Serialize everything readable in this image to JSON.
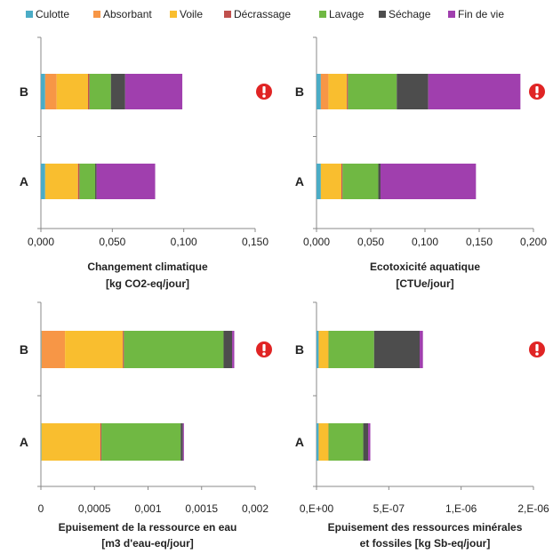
{
  "legend": [
    {
      "name": "Culotte",
      "color": "#4BACC6"
    },
    {
      "name": "Absorbant",
      "color": "#F79646"
    },
    {
      "name": "Voile",
      "color": "#F9BE2F"
    },
    {
      "name": "Décrassage",
      "color": "#C0504D"
    },
    {
      "name": "Lavage",
      "color": "#70B843"
    },
    {
      "name": "Séchage",
      "color": "#4D4D4D"
    },
    {
      "name": "Fin de vie",
      "color": "#A03FAE"
    }
  ],
  "alert_icon": "exclamation-circle-icon",
  "alert_color": "#E02424",
  "chart_data": [
    {
      "type": "bar",
      "orientation": "horizontal",
      "stacked": true,
      "categories": [
        "B",
        "A"
      ],
      "xlabel": "Changement climatique",
      "xunit": "[kg CO2-eq/jour]",
      "xlim": [
        0,
        0.15
      ],
      "xticks": [
        "0,000",
        "0,050",
        "0,100",
        "0,150"
      ],
      "alert_on": [
        "B"
      ],
      "series": [
        {
          "name": "Culotte",
          "values": [
            0.003,
            0.003
          ]
        },
        {
          "name": "Absorbant",
          "values": [
            0.008,
            0
          ]
        },
        {
          "name": "Voile",
          "values": [
            0.022,
            0.023
          ]
        },
        {
          "name": "Décrassage",
          "values": [
            0.001,
            0.001
          ]
        },
        {
          "name": "Lavage",
          "values": [
            0.015,
            0.011
          ]
        },
        {
          "name": "Séchage",
          "values": [
            0.01,
            0.001
          ]
        },
        {
          "name": "Fin de vie",
          "values": [
            0.04,
            0.041
          ]
        }
      ]
    },
    {
      "type": "bar",
      "orientation": "horizontal",
      "stacked": true,
      "categories": [
        "B",
        "A"
      ],
      "xlabel": "Ecotoxicité aquatique",
      "xunit": "[CTUe/jour]",
      "xlim": [
        0,
        0.2
      ],
      "xticks": [
        "0,000",
        "0,050",
        "0,100",
        "0,150",
        "0,200"
      ],
      "alert_on": [
        "B"
      ],
      "series": [
        {
          "name": "Culotte",
          "values": [
            0.004,
            0.004
          ]
        },
        {
          "name": "Absorbant",
          "values": [
            0.007,
            0
          ]
        },
        {
          "name": "Voile",
          "values": [
            0.017,
            0.019
          ]
        },
        {
          "name": "Décrassage",
          "values": [
            0.001,
            0.001
          ]
        },
        {
          "name": "Lavage",
          "values": [
            0.045,
            0.033
          ]
        },
        {
          "name": "Séchage",
          "values": [
            0.029,
            0.002
          ]
        },
        {
          "name": "Fin de vie",
          "values": [
            0.085,
            0.088
          ]
        }
      ]
    },
    {
      "type": "bar",
      "orientation": "horizontal",
      "stacked": true,
      "categories": [
        "B",
        "A"
      ],
      "xlabel": "Epuisement de la ressource en eau",
      "xunit": "[m3 d'eau-eq/jour]",
      "xlim": [
        0,
        0.002
      ],
      "xticks": [
        "0",
        "0,0005",
        "0,001",
        "0,0015",
        "0,002"
      ],
      "alert_on": [
        "B"
      ],
      "series": [
        {
          "name": "Culotte",
          "values": [
            5e-06,
            5e-06
          ]
        },
        {
          "name": "Absorbant",
          "values": [
            0.00022,
            0
          ]
        },
        {
          "name": "Voile",
          "values": [
            0.00054,
            0.00055
          ]
        },
        {
          "name": "Décrassage",
          "values": [
            1e-05,
            1e-05
          ]
        },
        {
          "name": "Lavage",
          "values": [
            0.00093,
            0.00074
          ]
        },
        {
          "name": "Séchage",
          "values": [
            8e-05,
            2e-05
          ]
        },
        {
          "name": "Fin de vie",
          "values": [
            2e-05,
            1e-05
          ]
        }
      ]
    },
    {
      "type": "bar",
      "orientation": "horizontal",
      "stacked": true,
      "categories": [
        "B",
        "A"
      ],
      "xlabel": "Epuisement des ressources minérales",
      "xlabel2": "et fossiles [kg Sb-eq/jour]",
      "xlim": [
        0,
        2e-06
      ],
      "xticks": [
        "0,E+00",
        "5,E-07",
        "1,E-06",
        "2,E-06"
      ],
      "alert_on": [
        "B"
      ],
      "series": [
        {
          "name": "Culotte",
          "values": [
            2e-08,
            2e-08
          ]
        },
        {
          "name": "Absorbant",
          "values": [
            0,
            0
          ]
        },
        {
          "name": "Voile",
          "values": [
            9e-08,
            9e-08
          ]
        },
        {
          "name": "Décrassage",
          "values": [
            1e-09,
            1e-09
          ]
        },
        {
          "name": "Lavage",
          "values": [
            4.2e-07,
            3.2e-07
          ]
        },
        {
          "name": "Séchage",
          "values": [
            4.2e-07,
            4.5e-08
          ]
        },
        {
          "name": "Fin de vie",
          "values": [
            3e-08,
            2e-08
          ]
        }
      ]
    }
  ]
}
